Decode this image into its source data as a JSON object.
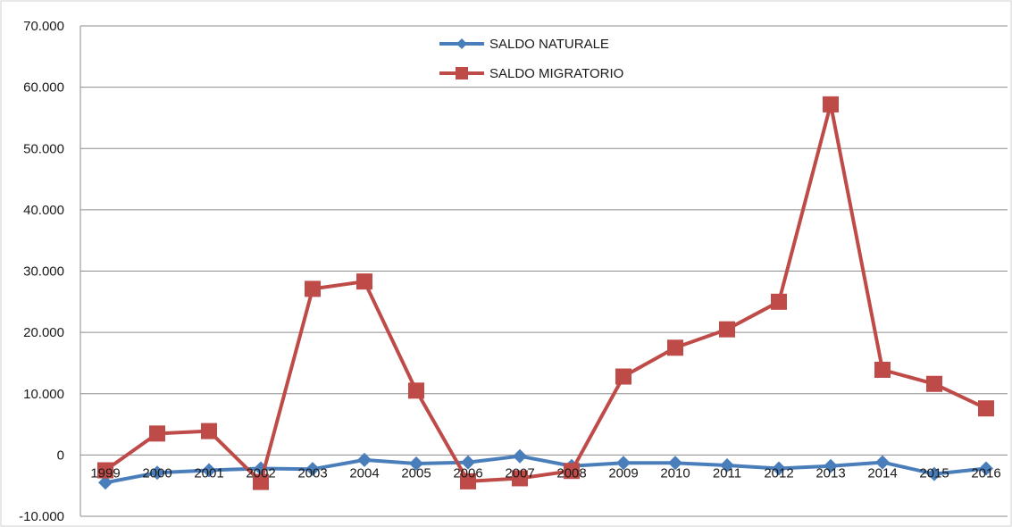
{
  "chart_data": {
    "type": "line",
    "title": "",
    "xlabel": "",
    "ylabel": "",
    "categories": [
      "1999",
      "2000",
      "2001",
      "2002",
      "2003",
      "2004",
      "2005",
      "2006",
      "2007",
      "2008",
      "2009",
      "2010",
      "2011",
      "2012",
      "2013",
      "2014",
      "2015",
      "2016"
    ],
    "ylim": [
      -10000,
      70000
    ],
    "yticks": [
      -10000,
      0,
      10000,
      20000,
      30000,
      40000,
      50000,
      60000,
      70000
    ],
    "ytick_labels": [
      "-10.000",
      "0",
      "10.000",
      "20.000",
      "30.000",
      "40.000",
      "50.000",
      "60.000",
      "70.000"
    ],
    "grid": true,
    "legend_position": "top-center",
    "series": [
      {
        "name": "SALDO NATURALE",
        "color": "#4a7ebb",
        "marker": "diamond",
        "values": [
          -4500,
          -2900,
          -2500,
          -2200,
          -2300,
          -800,
          -1400,
          -1200,
          -200,
          -1800,
          -1300,
          -1300,
          -1700,
          -2200,
          -1800,
          -1200,
          -3100,
          -2200
        ]
      },
      {
        "name": "SALDO MIGRATORIO",
        "color": "#be4b48",
        "marker": "square",
        "values": [
          -2500,
          3500,
          3900,
          -4400,
          27100,
          28300,
          10500,
          -4300,
          -3800,
          -2600,
          12800,
          17500,
          20500,
          25000,
          57200,
          13900,
          11600,
          7600
        ]
      }
    ]
  }
}
